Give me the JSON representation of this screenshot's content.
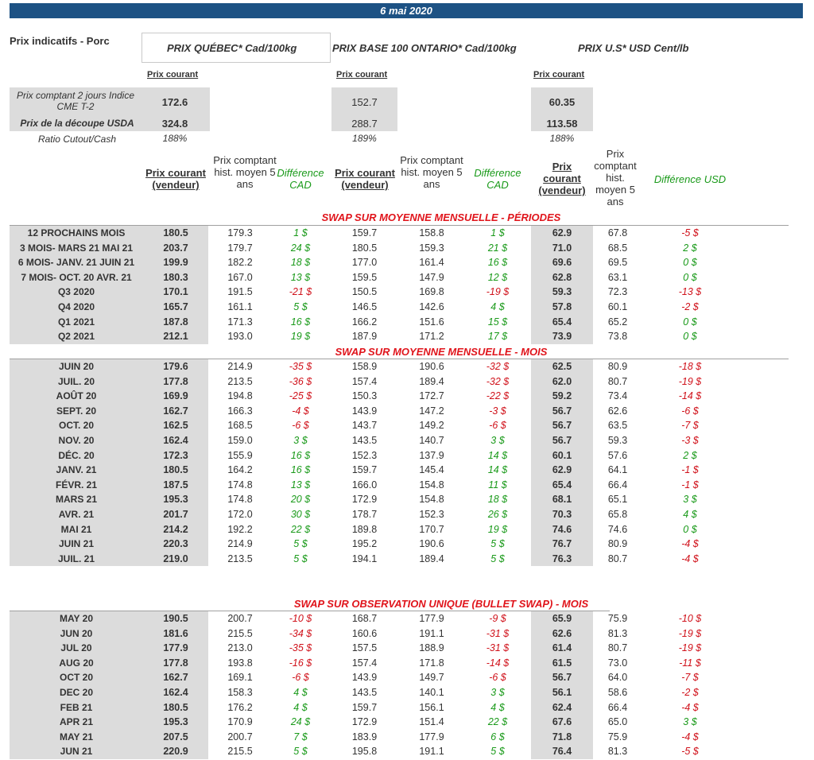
{
  "date": "6 mai 2020",
  "title": "Prix indicatifs - Porc",
  "headers": {
    "quebec": "PRIX QUÉBEC* Cad/100kg",
    "ontario": "PRIX BASE 100 ONTARIO* Cad/100kg",
    "us": "PRIX U.S* USD Cent/lb",
    "prix_courant": "Prix courant"
  },
  "summary": {
    "row1_label": "Prix comptant 2 jours Indice CME T-2",
    "row2_label": "Prix de la découpe USDA",
    "row3_label": "Ratio Cutout/Cash",
    "quebec": [
      "172.6",
      "324.8",
      "188%"
    ],
    "ontario": [
      "152.7",
      "288.7",
      "189%"
    ],
    "us": [
      "60.35",
      "113.58",
      "188%"
    ]
  },
  "column_headers": {
    "pc_vendeur": "Prix courant (vendeur)",
    "hist": "Prix comptant hist. moyen 5 ans",
    "hist_us": "Prix comptant hist. moyen 5 ans",
    "diff_cad": "Différence CAD",
    "diff_usd": "Différence USD"
  },
  "sections": [
    {
      "title": "SWAP SUR MOYENNE MENSUELLE - PÉRIODES",
      "rows": [
        [
          "12 PROCHAINS MOIS",
          "180.5",
          "179.3",
          "1 $",
          "159.7",
          "158.8",
          "1 $",
          "62.9",
          "67.8",
          "-5 $"
        ],
        [
          "3 MOIS- MARS 21 MAI 21",
          "203.7",
          "179.7",
          "24 $",
          "180.5",
          "159.3",
          "21 $",
          "71.0",
          "68.5",
          "2 $"
        ],
        [
          "6 MOIS- JANV. 21 JUIN 21",
          "199.9",
          "182.2",
          "18 $",
          "177.0",
          "161.4",
          "16 $",
          "69.6",
          "69.5",
          "0 $"
        ],
        [
          "7 MOIS- OCT. 20 AVR. 21",
          "180.3",
          "167.0",
          "13 $",
          "159.5",
          "147.9",
          "12 $",
          "62.8",
          "63.1",
          "0 $"
        ],
        [
          "Q3 2020",
          "170.1",
          "191.5",
          "-21 $",
          "150.5",
          "169.8",
          "-19 $",
          "59.3",
          "72.3",
          "-13 $"
        ],
        [
          "Q4 2020",
          "165.7",
          "161.1",
          "5 $",
          "146.5",
          "142.6",
          "4 $",
          "57.8",
          "60.1",
          "-2 $"
        ],
        [
          "Q1 2021",
          "187.8",
          "171.3",
          "16 $",
          "166.2",
          "151.6",
          "15 $",
          "65.4",
          "65.2",
          "0 $"
        ],
        [
          "Q2 2021",
          "212.1",
          "193.0",
          "19 $",
          "187.9",
          "171.2",
          "17 $",
          "73.9",
          "73.8",
          "0 $"
        ]
      ]
    },
    {
      "title": "SWAP SUR MOYENNE MENSUELLE - MOIS",
      "rows": [
        [
          "JUIN 20",
          "179.6",
          "214.9",
          "-35 $",
          "158.9",
          "190.6",
          "-32 $",
          "62.5",
          "80.9",
          "-18 $"
        ],
        [
          "JUIL. 20",
          "177.8",
          "213.5",
          "-36 $",
          "157.4",
          "189.4",
          "-32 $",
          "62.0",
          "80.7",
          "-19 $"
        ],
        [
          "AOÛT 20",
          "169.9",
          "194.8",
          "-25 $",
          "150.3",
          "172.7",
          "-22 $",
          "59.2",
          "73.4",
          "-14 $"
        ],
        [
          "SEPT. 20",
          "162.7",
          "166.3",
          "-4 $",
          "143.9",
          "147.2",
          "-3 $",
          "56.7",
          "62.6",
          "-6 $"
        ],
        [
          "OCT. 20",
          "162.5",
          "168.5",
          "-6 $",
          "143.7",
          "149.2",
          "-6 $",
          "56.7",
          "63.5",
          "-7 $"
        ],
        [
          "NOV. 20",
          "162.4",
          "159.0",
          "3 $",
          "143.5",
          "140.7",
          "3 $",
          "56.7",
          "59.3",
          "-3 $"
        ],
        [
          "DÉC. 20",
          "172.3",
          "155.9",
          "16 $",
          "152.3",
          "137.9",
          "14 $",
          "60.1",
          "57.6",
          "2 $"
        ],
        [
          "JANV. 21",
          "180.5",
          "164.2",
          "16 $",
          "159.7",
          "145.4",
          "14 $",
          "62.9",
          "64.1",
          "-1 $"
        ],
        [
          "FÉVR. 21",
          "187.5",
          "174.8",
          "13 $",
          "166.0",
          "154.8",
          "11 $",
          "65.4",
          "66.4",
          "-1 $"
        ],
        [
          "MARS 21",
          "195.3",
          "174.8",
          "20 $",
          "172.9",
          "154.8",
          "18 $",
          "68.1",
          "65.1",
          "3 $"
        ],
        [
          "AVR. 21",
          "201.7",
          "172.0",
          "30 $",
          "178.7",
          "152.3",
          "26 $",
          "70.3",
          "65.8",
          "4 $"
        ],
        [
          "MAI 21",
          "214.2",
          "192.2",
          "22 $",
          "189.8",
          "170.7",
          "19 $",
          "74.6",
          "74.6",
          "0 $"
        ],
        [
          "JUIN 21",
          "220.3",
          "214.9",
          "5 $",
          "195.2",
          "190.6",
          "5 $",
          "76.7",
          "80.9",
          "-4 $"
        ],
        [
          "JUIL. 21",
          "219.0",
          "213.5",
          "5 $",
          "194.1",
          "189.4",
          "5 $",
          "76.3",
          "80.7",
          "-4 $"
        ]
      ]
    },
    {
      "title": "SWAP SUR OBSERVATION UNIQUE (BULLET SWAP) - MOIS",
      "rows": [
        [
          "MAY 20",
          "190.5",
          "200.7",
          "-10 $",
          "168.7",
          "177.9",
          "-9 $",
          "65.9",
          "75.9",
          "-10 $"
        ],
        [
          "JUN 20",
          "181.6",
          "215.5",
          "-34 $",
          "160.6",
          "191.1",
          "-31 $",
          "62.6",
          "81.3",
          "-19 $"
        ],
        [
          "JUL 20",
          "177.9",
          "213.0",
          "-35 $",
          "157.5",
          "188.9",
          "-31 $",
          "61.4",
          "80.7",
          "-19 $"
        ],
        [
          "AUG 20",
          "177.8",
          "193.8",
          "-16 $",
          "157.4",
          "171.8",
          "-14 $",
          "61.5",
          "73.0",
          "-11 $"
        ],
        [
          "OCT 20",
          "162.7",
          "169.1",
          "-6 $",
          "143.9",
          "149.7",
          "-6 $",
          "56.7",
          "64.0",
          "-7 $"
        ],
        [
          "DEC 20",
          "162.4",
          "158.3",
          "4 $",
          "143.5",
          "140.1",
          "3 $",
          "56.1",
          "58.6",
          "-2 $"
        ],
        [
          "FEB 21",
          "180.5",
          "176.2",
          "4 $",
          "159.7",
          "156.1",
          "4 $",
          "62.4",
          "66.4",
          "-4 $"
        ],
        [
          "APR 21",
          "195.3",
          "170.9",
          "24 $",
          "172.9",
          "151.4",
          "22 $",
          "67.6",
          "65.0",
          "3 $"
        ],
        [
          "MAY 21",
          "207.5",
          "200.7",
          "7 $",
          "183.9",
          "177.9",
          "6 $",
          "71.8",
          "75.9",
          "-4 $"
        ],
        [
          "JUN 21",
          "220.9",
          "215.5",
          "5 $",
          "195.8",
          "191.1",
          "5 $",
          "76.4",
          "81.3",
          "-5 $"
        ]
      ]
    }
  ]
}
